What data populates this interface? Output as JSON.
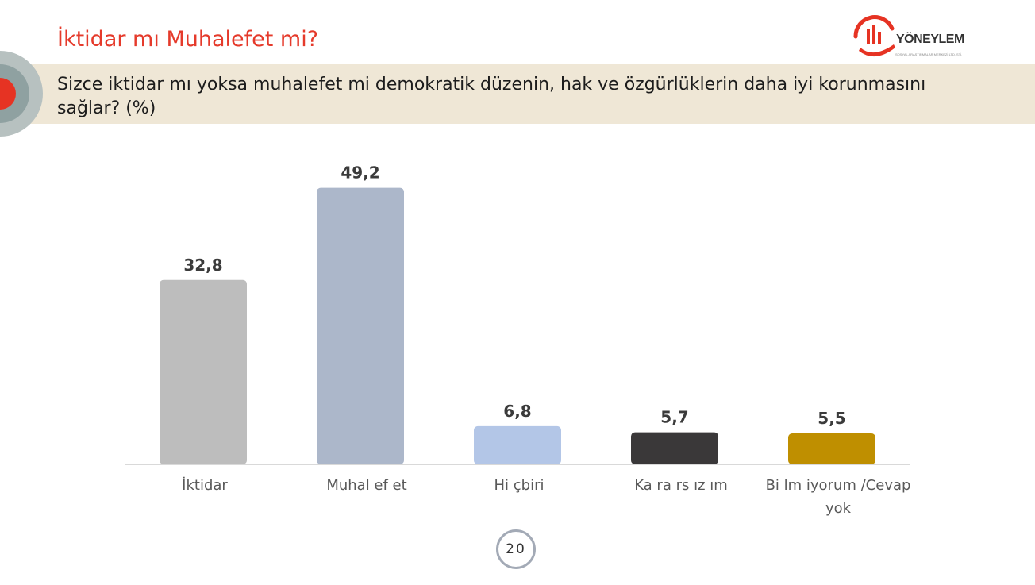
{
  "page_title": "İktidar mı Muhalefet mi?",
  "question": "Sizce iktidar mı yoksa muhalefet mi demokratik düzenin, hak ve özgürlüklerin daha iyi korunmasını sağlar? (%)",
  "logo": {
    "word": "YÖNEYLEM",
    "subtitle": "SOSYAL ARAŞTIRMALAR MERKEZİ LTD. ŞTİ."
  },
  "page_number": "20",
  "colors": {
    "title": "#e53a2b",
    "band": "#efe7d6"
  },
  "chart_data": {
    "type": "bar",
    "title": "",
    "xlabel": "",
    "ylabel": "",
    "ylim": [
      0,
      55
    ],
    "grid": false,
    "legend": "none",
    "categories": [
      [
        "İktidar"
      ],
      [
        "Muhal ef et"
      ],
      [
        "Hi çbiri"
      ],
      [
        "Ka ra rs ız ım"
      ],
      [
        "Bi lm iyorum /Cevap",
        "yok"
      ]
    ],
    "values": [
      32.8,
      49.2,
      6.8,
      5.7,
      5.5
    ],
    "value_labels": [
      "32,8",
      "49,2",
      "6,8",
      "5,7",
      "5,5"
    ],
    "bar_colors": [
      "#bdbdbd",
      "#acb7ca",
      "#b3c6e7",
      "#3a3839",
      "#bf8f00"
    ]
  }
}
